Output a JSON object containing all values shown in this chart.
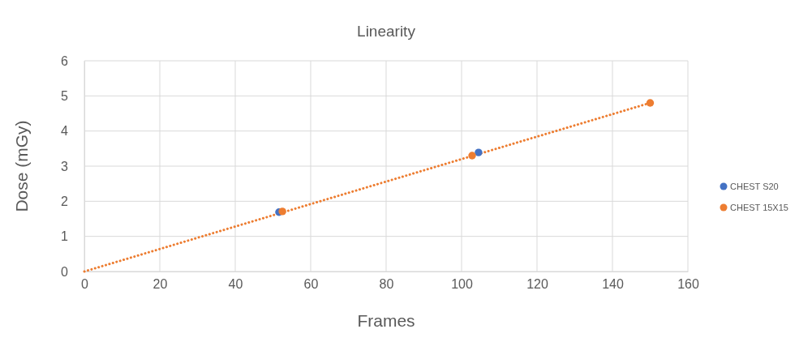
{
  "chart_data": {
    "type": "scatter",
    "title": "Linearity",
    "xlabel": "Frames",
    "ylabel": "Dose (mGy)",
    "xlim": [
      0,
      160
    ],
    "xticks": [
      0,
      20,
      40,
      60,
      80,
      100,
      120,
      140,
      160
    ],
    "ylim": [
      0,
      6
    ],
    "yticks": [
      0,
      1,
      2,
      3,
      4,
      5,
      6
    ],
    "grid": true,
    "legend": "right",
    "marker": "circle",
    "series": [
      {
        "name": "CHEST S20",
        "color": "#4472c4",
        "x": [
          51.6,
          104.5
        ],
        "values": [
          1.69,
          3.39
        ]
      },
      {
        "name": "CHEST 15X15",
        "color": "#ed7d31",
        "x": [
          52.5,
          102.8,
          150
        ],
        "values": [
          1.71,
          3.3,
          4.8
        ]
      },
      {
        "type": "line",
        "color": "#ed7d31",
        "line_style": "dotted",
        "marker": "none",
        "x": [
          0,
          150
        ],
        "values": [
          0,
          4.8
        ]
      }
    ]
  }
}
